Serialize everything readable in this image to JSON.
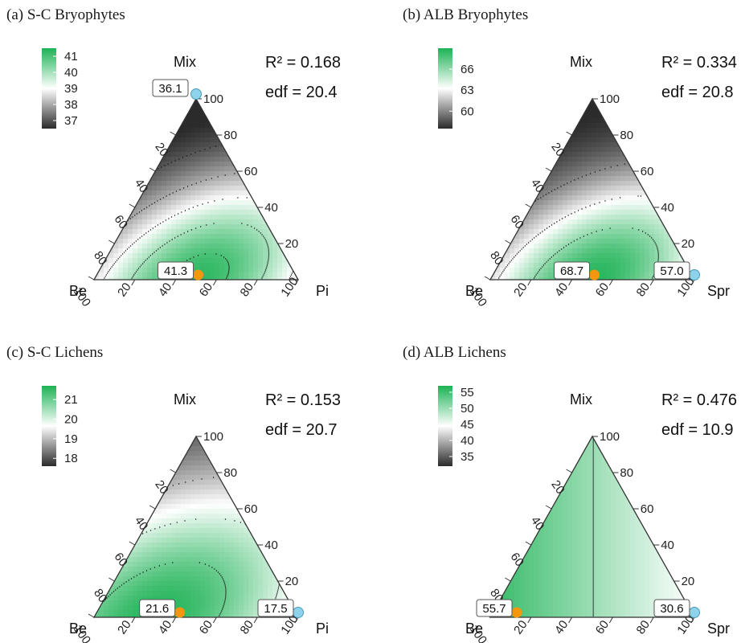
{
  "colors": {
    "green": "#1db255",
    "white": "#ffffff",
    "black": "#2b2b2b",
    "max_marker": "#f5960f",
    "min_marker": "#8ed3ea"
  },
  "chart_data": [
    {
      "type": "heatmap",
      "subtype": "ternary-contour",
      "title": "(a) S-C Bryophytes",
      "stats": {
        "r2": "R² = 0.168",
        "edf": "edf = 20.4"
      },
      "vertices": {
        "top": "Mix",
        "left": "Be",
        "right": "Pi"
      },
      "ticks": [
        "20",
        "40",
        "60",
        "80",
        "100"
      ],
      "legend": {
        "ticks": [
          "41",
          "40",
          "39",
          "38",
          "37"
        ],
        "min": 36.5,
        "max": 41.5
      },
      "surface": {
        "model": "gauss",
        "fmin": 36.1,
        "fmax": 41.3,
        "center": {
          "mix": 0.0,
          "pi": 0.5
        },
        "width": 0.42
      },
      "max_point": {
        "label": "41.3",
        "be": 49,
        "pi": 51,
        "mix": 0
      },
      "min_point": {
        "label": "36.1",
        "be": 0,
        "pi": 0,
        "mix": 100
      },
      "contours": [
        37,
        38,
        39,
        40,
        41
      ]
    },
    {
      "type": "heatmap",
      "subtype": "ternary-contour",
      "title": "(b) ALB Bryophytes",
      "stats": {
        "r2": "R² = 0.334",
        "edf": "edf = 20.8"
      },
      "vertices": {
        "top": "Mix",
        "left": "Be",
        "right": "Spr"
      },
      "ticks": [
        "20",
        "40",
        "60",
        "80",
        "100"
      ],
      "legend": {
        "ticks": [
          "66",
          "63",
          "60"
        ],
        "min": 57.5,
        "max": 69
      },
      "surface": {
        "model": "gauss",
        "fmin": 57.0,
        "fmax": 68.7,
        "center": {
          "mix": 0.0,
          "pi": 0.5
        },
        "width": 0.4
      },
      "max_point": {
        "label": "68.7",
        "be": 49,
        "pi": 51,
        "mix": 0
      },
      "min_point": {
        "label": "57.0",
        "be": 0,
        "pi": 100,
        "mix": 0
      },
      "contours": [
        60,
        63,
        66
      ]
    },
    {
      "type": "heatmap",
      "subtype": "ternary-contour",
      "title": "(c) S-C Lichens",
      "stats": {
        "r2": "R² = 0.153",
        "edf": "edf = 20.7"
      },
      "vertices": {
        "top": "Mix",
        "left": "Be",
        "right": "Pi"
      },
      "ticks": [
        "20",
        "40",
        "60",
        "80",
        "100"
      ],
      "legend": {
        "ticks": [
          "21",
          "20",
          "19",
          "18"
        ],
        "min": 17.6,
        "max": 21.7
      },
      "surface": {
        "model": "gauss",
        "fmin": 17.5,
        "fmax": 21.6,
        "center": {
          "mix": 0.0,
          "pi": 0.3
        },
        "width": 0.55
      },
      "max_point": {
        "label": "21.6",
        "be": 58,
        "pi": 42,
        "mix": 0
      },
      "min_point": {
        "label": "17.5",
        "be": 0,
        "pi": 100,
        "mix": 0
      },
      "contours": [
        18,
        19,
        20,
        21
      ]
    },
    {
      "type": "heatmap",
      "subtype": "ternary-contour",
      "title": "(d) ALB Lichens",
      "stats": {
        "r2": "R² = 0.476",
        "edf": "edf = 10.9"
      },
      "vertices": {
        "top": "Mix",
        "left": "Be",
        "right": "Spr"
      },
      "ticks": [
        "20",
        "40",
        "60",
        "80",
        "100"
      ],
      "legend": {
        "ticks": [
          "55",
          "50",
          "45",
          "40",
          "35"
        ],
        "min": 32,
        "max": 57
      },
      "surface": {
        "model": "linear",
        "fmin": 30.6,
        "fmax": 55.7,
        "lo": 0.55,
        "hi": 1.0
      },
      "max_point": {
        "label": "55.7",
        "be": 87,
        "pi": 13,
        "mix": 0
      },
      "min_point": {
        "label": "30.6",
        "be": 0,
        "pi": 100,
        "mix": 0
      },
      "contours": [
        45,
        50
      ]
    }
  ]
}
